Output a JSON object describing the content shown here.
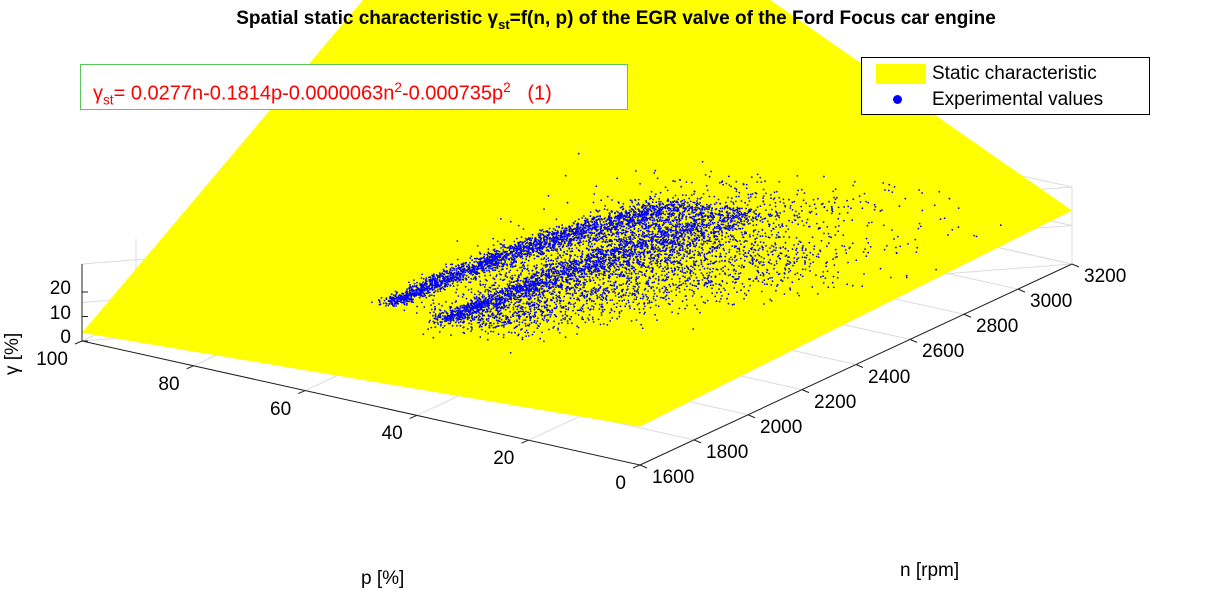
{
  "chart_data": {
    "type": "surface3d-scatter",
    "title": "Spatial static characteristic γ_st=f(n, p) of the EGR valve of the Ford Focus car engine",
    "title_parts": {
      "prefix": "Spatial static characteristic γ",
      "sub": "st",
      "suffix": "=f(n, p) of the EGR valve of the Ford Focus car engine"
    },
    "annotation": {
      "text": "γst= 0.0277n-0.1814p-0.0000063n2-0.000735p2 (1)",
      "parts": {
        "gamma": "γ",
        "sub": "st",
        "a": "= 0.0277n-0.1814p-0.0000063n",
        "sup1": "2",
        "b": "-0.000735p",
        "sup2": "2",
        "c": "   (1)"
      },
      "coefficients": {
        "n": 0.0277,
        "p": -0.1814,
        "n2": -6.3e-06,
        "p2": -0.000735
      },
      "color": "#ff0000"
    },
    "xlabel": "p [%]",
    "ylabel": "n [rpm]",
    "zlabel": "γ [%]",
    "xlim": [
      0,
      100
    ],
    "ylim": [
      1600,
      3200
    ],
    "zlim": [
      0,
      20
    ],
    "xticks": [
      "0",
      "20",
      "40",
      "60",
      "80",
      "100"
    ],
    "yticks": [
      "1600",
      "1800",
      "2000",
      "2200",
      "2400",
      "2600",
      "2800",
      "3000",
      "3200"
    ],
    "zticks": [
      "0",
      "10",
      "20"
    ],
    "grid": true,
    "legend_position": "top-right",
    "series": [
      {
        "name": "Static characteristic",
        "kind": "surface",
        "color": "#ffff00"
      },
      {
        "name": "Experimental values",
        "kind": "scatter",
        "color": "#0000ff"
      }
    ]
  }
}
